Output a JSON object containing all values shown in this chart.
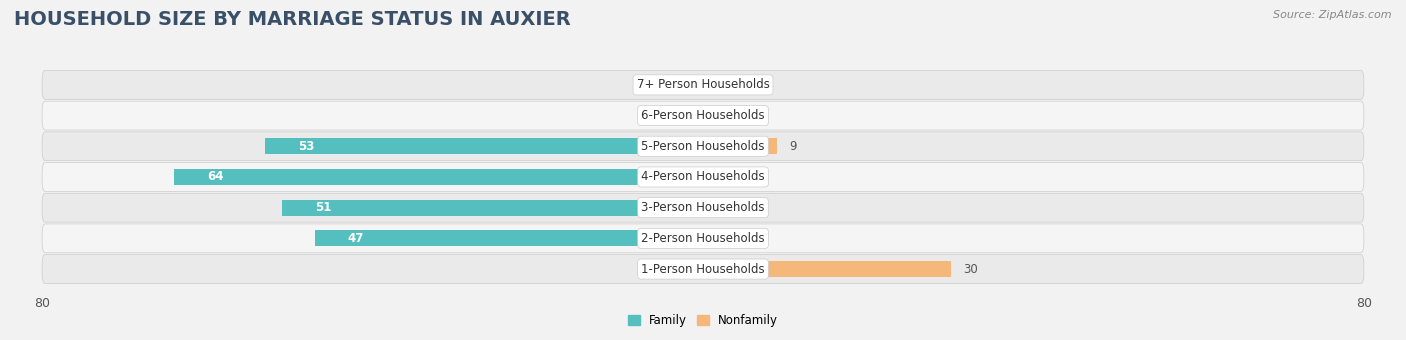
{
  "title": "HOUSEHOLD SIZE BY MARRIAGE STATUS IN AUXIER",
  "source": "Source: ZipAtlas.com",
  "categories": [
    "7+ Person Households",
    "6-Person Households",
    "5-Person Households",
    "4-Person Households",
    "3-Person Households",
    "2-Person Households",
    "1-Person Households"
  ],
  "family_values": [
    0,
    0,
    53,
    64,
    51,
    47,
    0
  ],
  "nonfamily_values": [
    0,
    0,
    9,
    0,
    0,
    0,
    30
  ],
  "family_color": "#55bfbf",
  "nonfamily_color": "#f5b87a",
  "nonfamily_zero_color": "#f5c99a",
  "axis_limit": 80,
  "bar_height": 0.52,
  "background_color": "#f2f2f2",
  "row_bg_even": "#eaeaea",
  "row_bg_odd": "#f5f5f5",
  "title_fontsize": 14,
  "label_fontsize": 8.5,
  "cat_fontsize": 8.5,
  "tick_fontsize": 9,
  "source_fontsize": 8,
  "title_color": "#3a5068",
  "label_color_white": "#ffffff",
  "label_color_dark": "#555555",
  "zero_stub": 5
}
